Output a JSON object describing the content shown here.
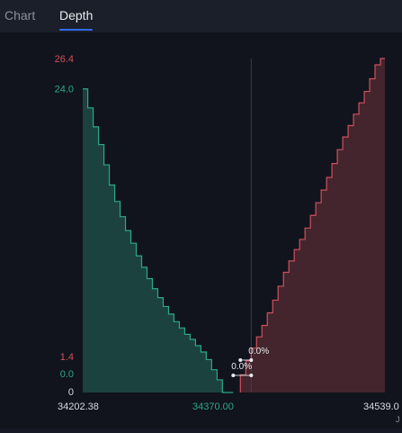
{
  "tabs": [
    {
      "label": "Chart",
      "active": false
    },
    {
      "label": "Depth",
      "active": true
    }
  ],
  "colors": {
    "bid": "#2ba88a",
    "ask": "#d1505b",
    "accent": "#2f6bff"
  },
  "chart_data": {
    "type": "area",
    "title": "",
    "xlabel": "",
    "ylabel": "",
    "x_ticks": [
      "34202.38",
      "34370.00",
      "34539.0"
    ],
    "x_ticks_colors": [
      "#d7dae0",
      "#2ba88a",
      "#d7dae0"
    ],
    "y_labels": [
      {
        "text": "26.4",
        "value": 26.4,
        "color": "#d1505b"
      },
      {
        "text": "24.0",
        "value": 24.0,
        "color": "#2ba88a"
      },
      {
        "text": "1.4",
        "value": 1.4,
        "color": "#d1505b"
      },
      {
        "text": "0.0",
        "value": 0.0,
        "color": "#2ba88a"
      },
      {
        "text": "0",
        "value": 0,
        "color": "#d7dae0"
      }
    ],
    "xlim": [
      34202.38,
      34539.0
    ],
    "ylim": [
      0,
      26.4
    ],
    "mid_price": 34370.0,
    "bid_series": {
      "name": "",
      "x": [
        34202.38,
        34208,
        34214,
        34220,
        34226,
        34232,
        34238,
        34244,
        34250,
        34256,
        34262,
        34268,
        34274,
        34280,
        34286,
        34292,
        34298,
        34304,
        34310,
        34316,
        34322,
        34328,
        34334,
        34340,
        34346,
        34352,
        34358,
        34364,
        34370.0
      ],
      "y": [
        24.0,
        22.5,
        21.0,
        19.6,
        18.0,
        16.4,
        15.1,
        13.9,
        12.8,
        11.8,
        10.8,
        9.9,
        9.0,
        8.2,
        7.5,
        6.8,
        6.2,
        5.6,
        5.1,
        4.6,
        4.2,
        3.7,
        3.2,
        2.6,
        1.8,
        1.0,
        0.0,
        0.0,
        0.0
      ]
    },
    "ask_series": {
      "name": "",
      "x": [
        34378,
        34384,
        34390,
        34396,
        34402,
        34408,
        34414,
        34420,
        34426,
        34432,
        34438,
        34444,
        34450,
        34456,
        34462,
        34468,
        34474,
        34480,
        34486,
        34492,
        34498,
        34504,
        34510,
        34516,
        34522,
        34528,
        34534,
        34539.0
      ],
      "y": [
        1.4,
        1.4,
        2.5,
        3.5,
        4.4,
        5.3,
        6.3,
        7.3,
        8.4,
        9.5,
        10.4,
        11.3,
        12.1,
        13.0,
        14.0,
        15.0,
        16.0,
        17.0,
        18.1,
        19.2,
        20.2,
        21.1,
        22.0,
        22.9,
        23.8,
        24.8,
        25.9,
        26.4
      ]
    },
    "annotations": [
      {
        "text": "0.0%",
        "side": "ask"
      },
      {
        "text": "0.0%",
        "side": "bid"
      }
    ],
    "corner_mark": "J",
    "grid": false,
    "legend": "none"
  }
}
